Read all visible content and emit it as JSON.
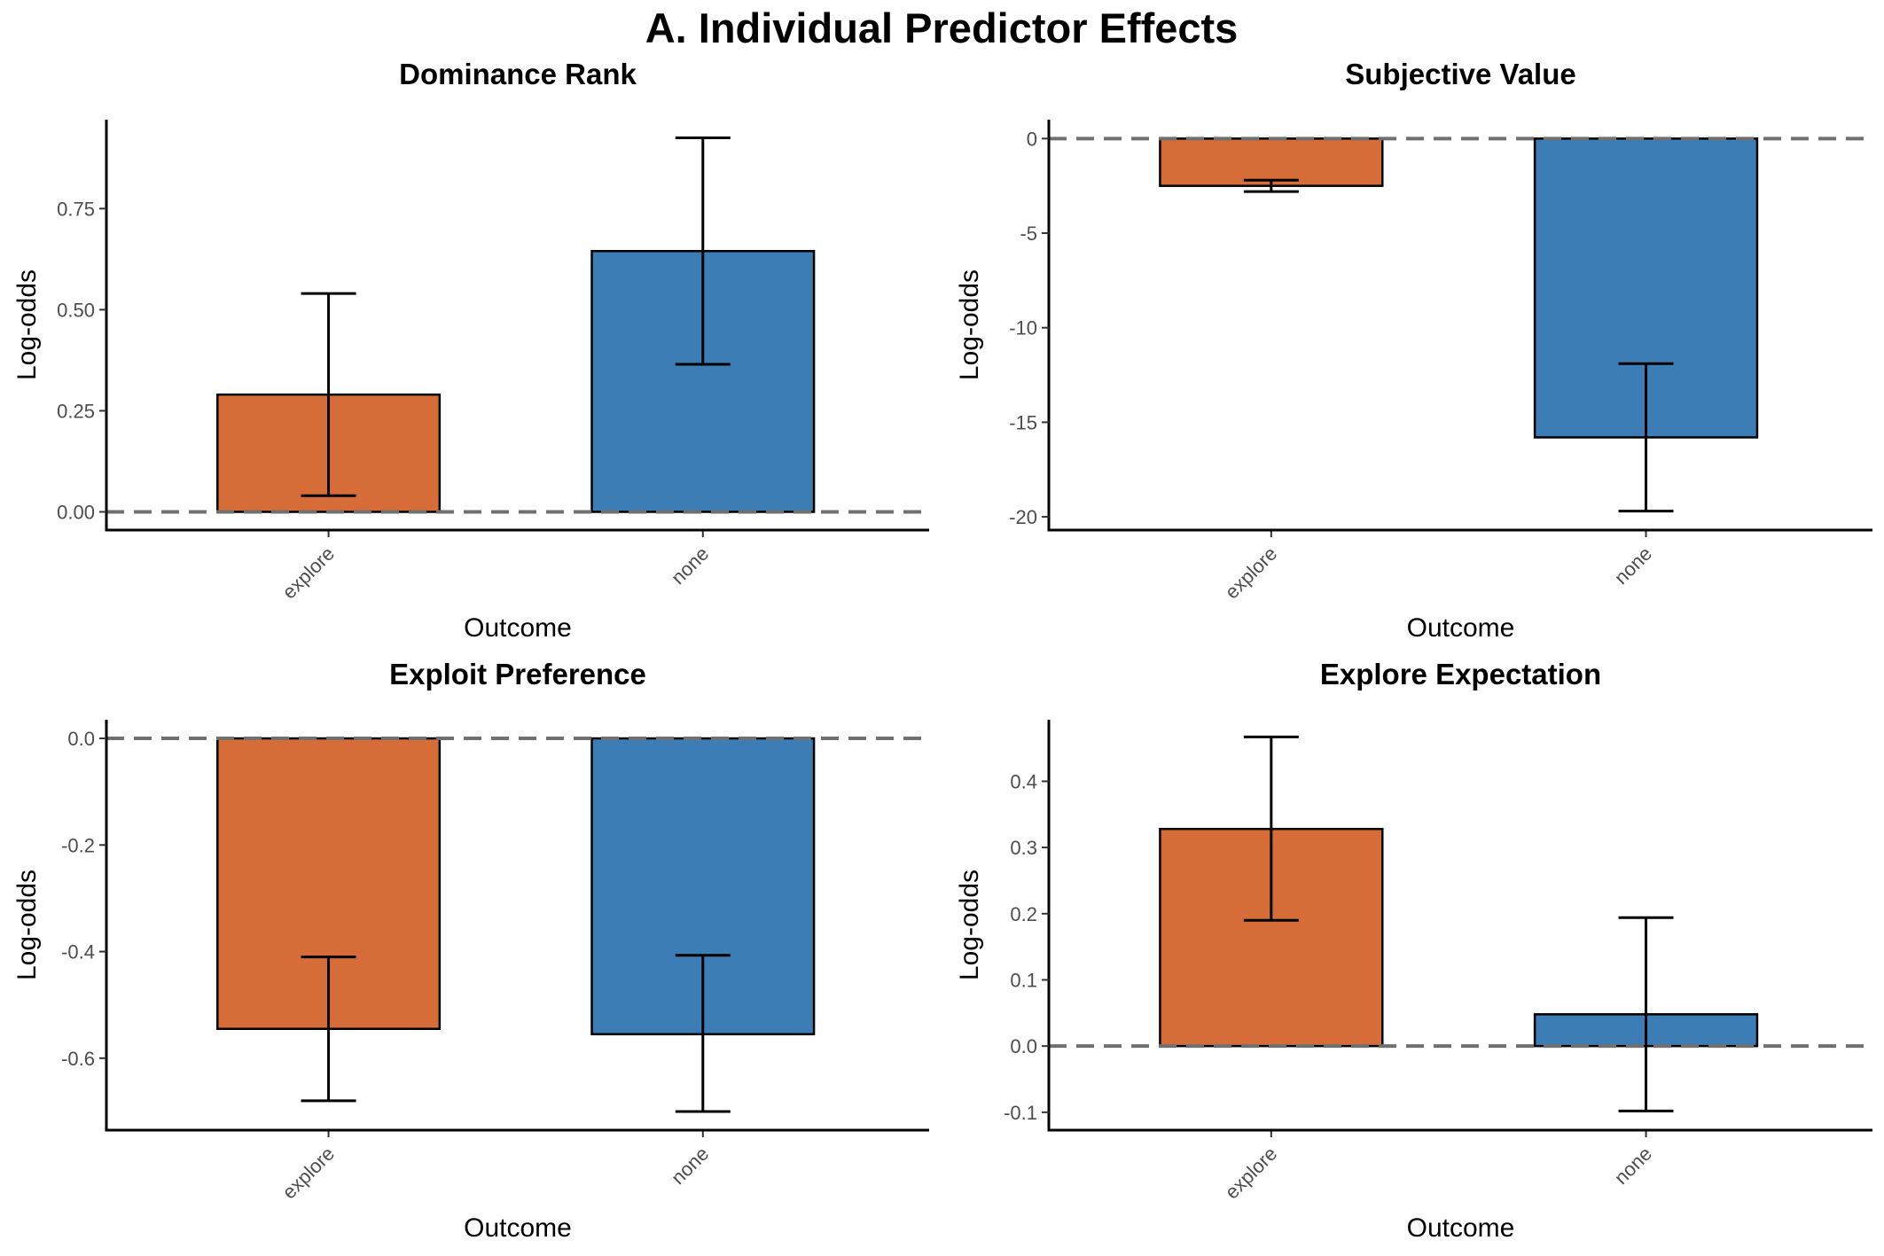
{
  "figure": {
    "title": "A. Individual Predictor Effects",
    "colors": {
      "explore": "#D66D39",
      "none": "#3D7DB5",
      "refline": "#707070"
    }
  },
  "chart_data": [
    {
      "type": "bar",
      "title": "Dominance Rank",
      "xlabel": "Outcome",
      "ylabel": "Log-odds",
      "categories": [
        "explore",
        "none"
      ],
      "values": [
        0.29,
        0.645
      ],
      "error_low": [
        0.04,
        0.365
      ],
      "error_high": [
        0.54,
        0.925
      ],
      "ylim": [
        -0.045,
        0.97
      ],
      "yticks": [
        0.0,
        0.25,
        0.5,
        0.75
      ],
      "ytick_labels": [
        "0.00",
        "0.25",
        "0.50",
        "0.75"
      ],
      "reference_line": 0,
      "grid": false
    },
    {
      "type": "bar",
      "title": "Subjective Value",
      "xlabel": "Outcome",
      "ylabel": "Log-odds",
      "categories": [
        "explore",
        "none"
      ],
      "values": [
        -2.5,
        -15.8
      ],
      "error_low": [
        -2.8,
        -19.7
      ],
      "error_high": [
        -2.2,
        -11.9
      ],
      "ylim": [
        -20.7,
        1.0
      ],
      "yticks": [
        0,
        -5,
        -10,
        -15,
        -20
      ],
      "ytick_labels": [
        "0",
        "-5",
        "-10",
        "-15",
        "-20"
      ],
      "reference_line": 0,
      "grid": false
    },
    {
      "type": "bar",
      "title": "Exploit Preference",
      "xlabel": "Outcome",
      "ylabel": "Log-odds",
      "categories": [
        "explore",
        "none"
      ],
      "values": [
        -0.545,
        -0.555
      ],
      "error_low": [
        -0.68,
        -0.7
      ],
      "error_high": [
        -0.41,
        -0.407
      ],
      "ylim": [
        -0.735,
        0.035
      ],
      "yticks": [
        0.0,
        -0.2,
        -0.4,
        -0.6
      ],
      "ytick_labels": [
        "0.0",
        "-0.2",
        "-0.4",
        "-0.6"
      ],
      "reference_line": 0,
      "grid": false
    },
    {
      "type": "bar",
      "title": "Explore Expectation",
      "xlabel": "Outcome",
      "ylabel": "Log-odds",
      "categories": [
        "explore",
        "none"
      ],
      "values": [
        0.328,
        0.048
      ],
      "error_low": [
        0.19,
        -0.098
      ],
      "error_high": [
        0.467,
        0.194
      ],
      "ylim": [
        -0.127,
        0.493
      ],
      "yticks": [
        0.4,
        0.3,
        0.2,
        0.1,
        0.0,
        -0.1
      ],
      "ytick_labels": [
        "0.4",
        "0.3",
        "0.2",
        "0.1",
        "0.0",
        "-0.1"
      ],
      "reference_line": 0,
      "grid": false
    }
  ]
}
